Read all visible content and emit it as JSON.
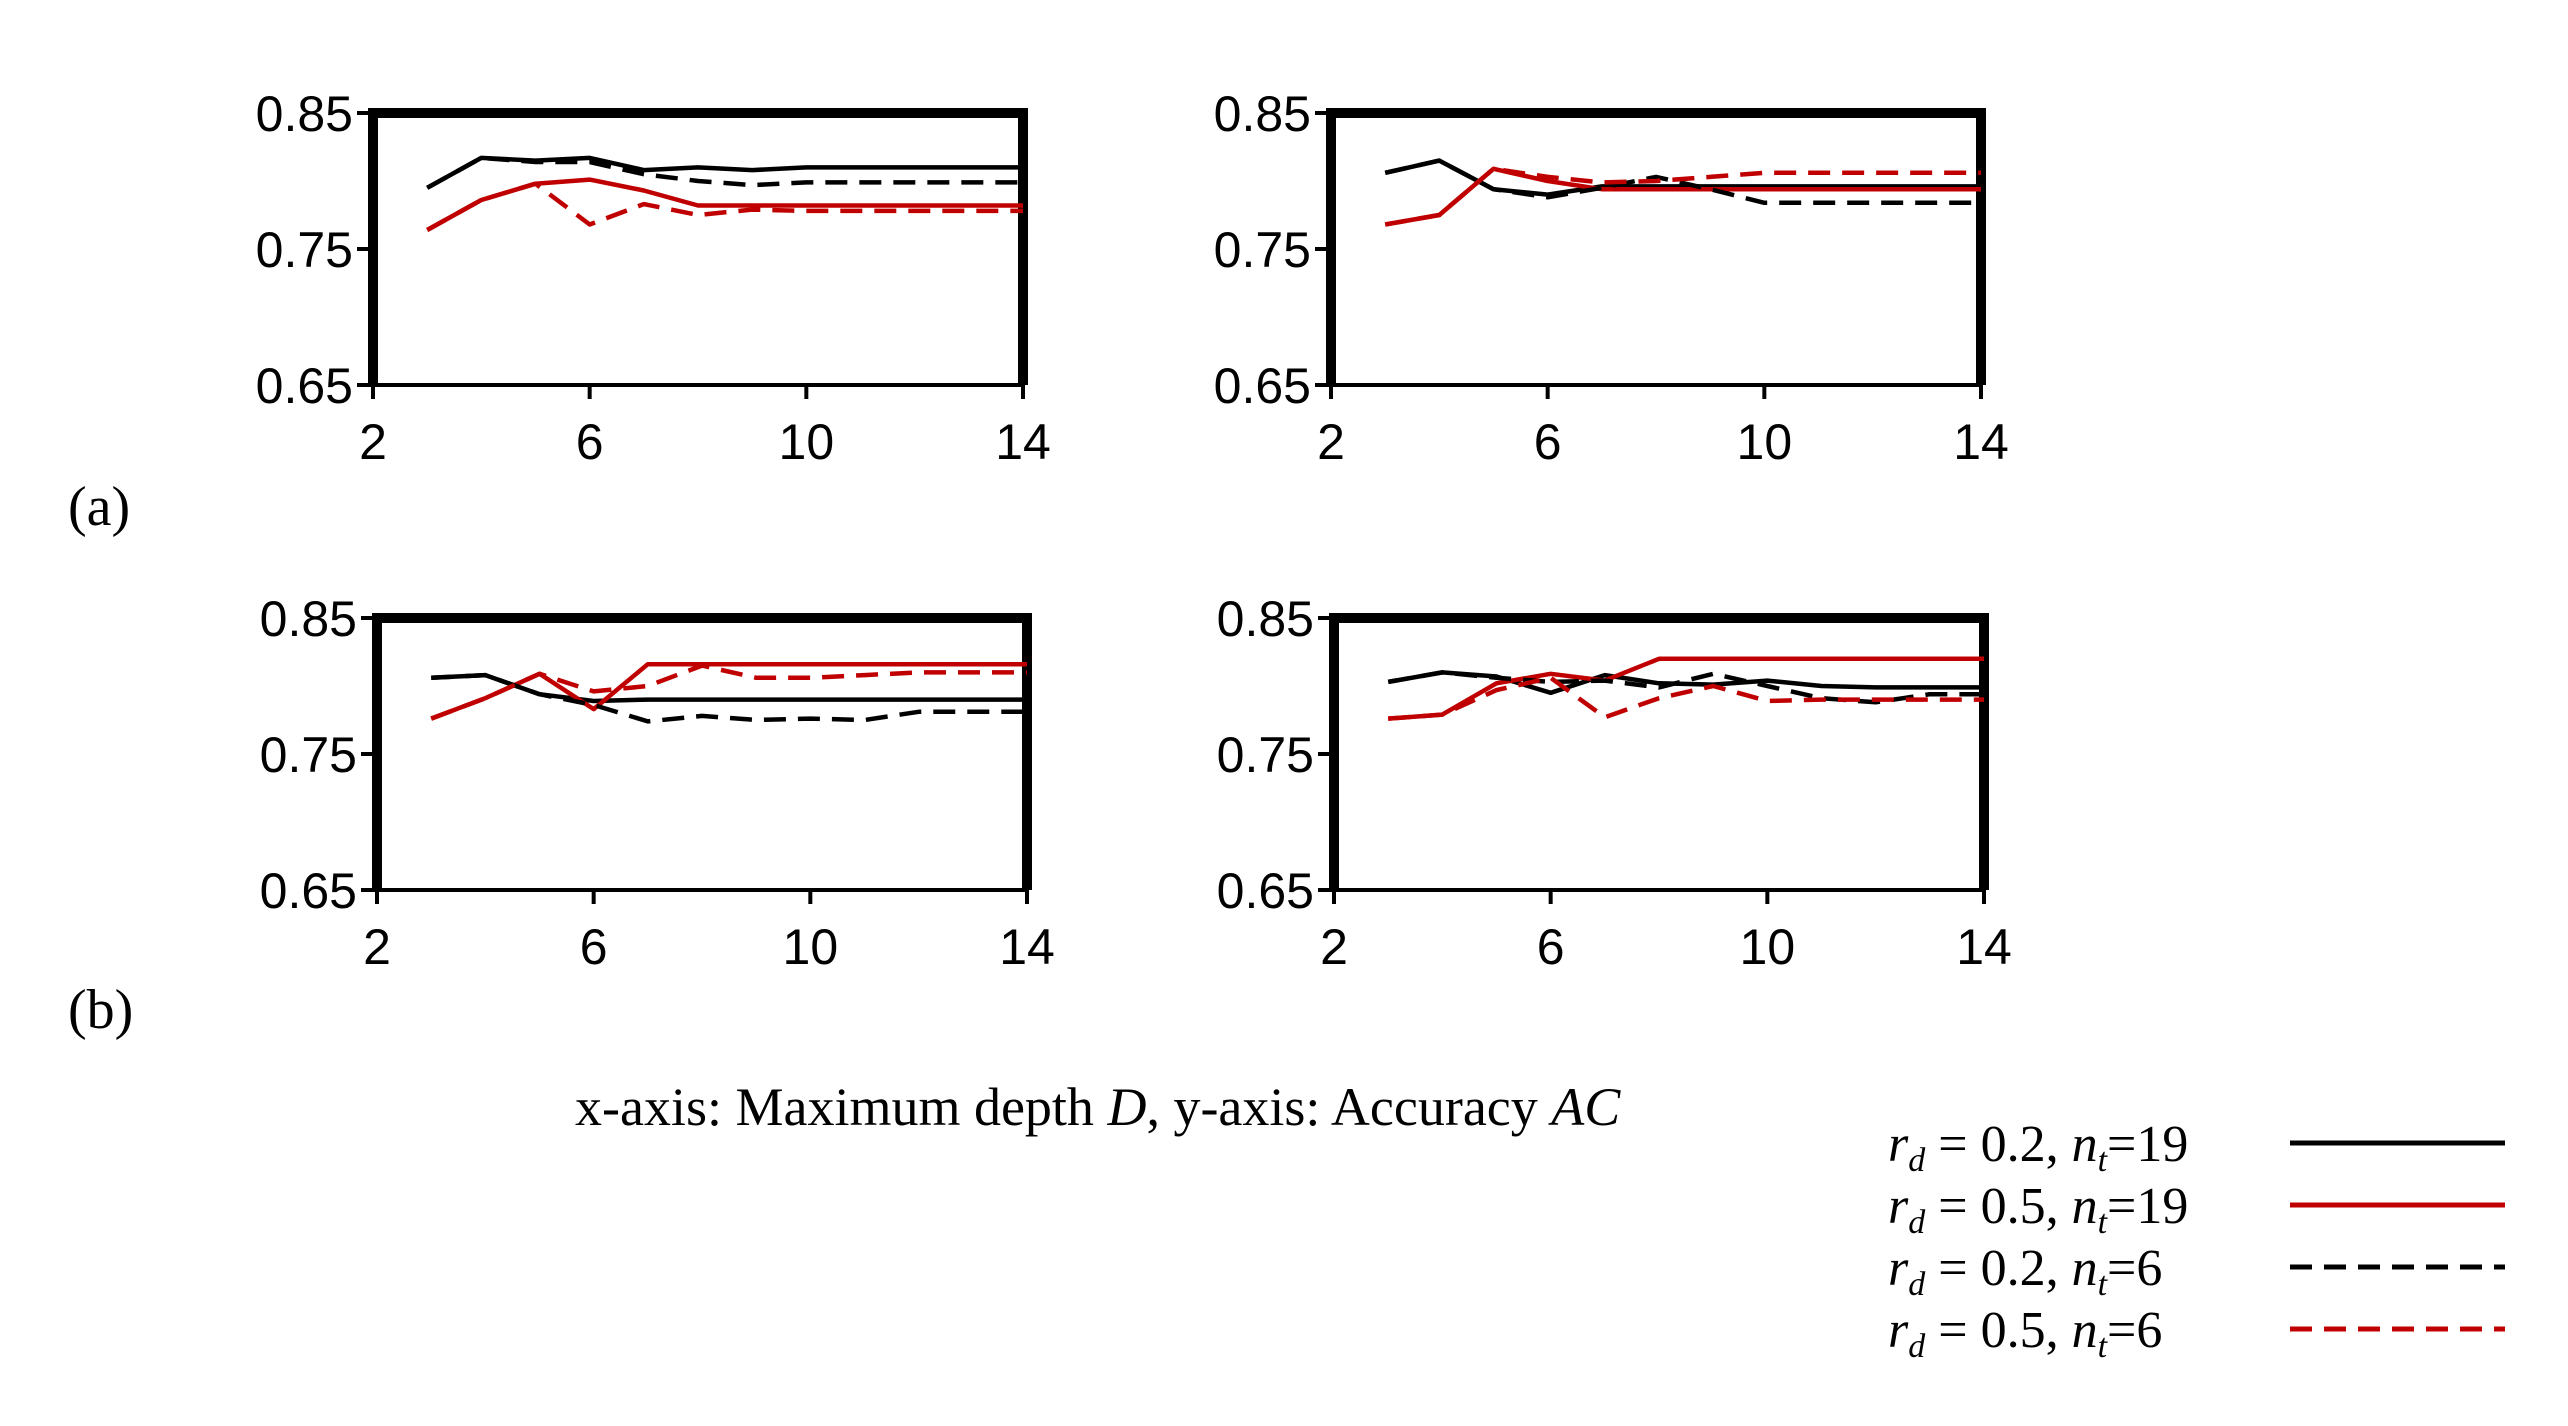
{
  "colors": {
    "black": "#000000",
    "red": "#c00000",
    "frame": "#000000"
  },
  "row_labels": [
    "(a)",
    "(b)"
  ],
  "caption": {
    "prefix": "x-axis: Maximum depth ",
    "x_var": "D",
    "middle": ", y-axis: Accuracy ",
    "y_var": "AC"
  },
  "legend": [
    {
      "r": "r",
      "r_sub": "d",
      "eq_text": " = 0.2, ",
      "n": "n",
      "n_sub": "t",
      "n_val": "=19",
      "color": "#000000",
      "dash": false
    },
    {
      "r": "r",
      "r_sub": "d",
      "eq_text": " = 0.5, ",
      "n": "n",
      "n_sub": "t",
      "n_val": "=19",
      "color": "#c00000",
      "dash": false
    },
    {
      "r": "r",
      "r_sub": "d",
      "eq_text": " = 0.2, ",
      "n": "n",
      "n_sub": "t",
      "n_val": "=6",
      "color": "#000000",
      "dash": true
    },
    {
      "r": "r",
      "r_sub": "d",
      "eq_text": " = 0.5, ",
      "n": "n",
      "n_sub": "t",
      "n_val": "=6",
      "color": "#c00000",
      "dash": true
    }
  ],
  "chart_data": [
    {
      "type": "line",
      "row": "(a)",
      "position": "left",
      "x": [
        3,
        4,
        5,
        6,
        7,
        8,
        9,
        10,
        11,
        12,
        13,
        14
      ],
      "xlim": [
        2,
        14
      ],
      "ylim": [
        0.65,
        0.85
      ],
      "xticks": [
        "2",
        "6",
        "10",
        "14"
      ],
      "yticks": [
        "0.65",
        "0.75",
        "0.85"
      ],
      "series": [
        {
          "name": "r_d = 0.2, n_t=19",
          "color": "#000000",
          "dash": false,
          "values": [
            0.795,
            0.817,
            0.815,
            0.817,
            0.808,
            0.81,
            0.808,
            0.81,
            0.81,
            0.81,
            0.81,
            0.81
          ]
        },
        {
          "name": "r_d = 0.5, n_t=19",
          "color": "#c00000",
          "dash": false,
          "values": [
            0.764,
            0.786,
            0.798,
            0.801,
            0.793,
            0.782,
            0.782,
            0.782,
            0.782,
            0.782,
            0.782,
            0.782
          ]
        },
        {
          "name": "r_d = 0.2, n_t=6",
          "color": "#000000",
          "dash": true,
          "values": [
            0.795,
            0.817,
            0.814,
            0.814,
            0.805,
            0.8,
            0.797,
            0.799,
            0.799,
            0.799,
            0.799,
            0.799
          ]
        },
        {
          "name": "r_d = 0.5, n_t=6",
          "color": "#c00000",
          "dash": true,
          "values": [
            0.764,
            0.786,
            0.798,
            0.768,
            0.783,
            0.775,
            0.779,
            0.778,
            0.778,
            0.778,
            0.778,
            0.778
          ]
        }
      ]
    },
    {
      "type": "line",
      "row": "(a)",
      "position": "right",
      "x": [
        3,
        4,
        5,
        6,
        7,
        8,
        9,
        10,
        11,
        12,
        13,
        14
      ],
      "xlim": [
        2,
        14
      ],
      "ylim": [
        0.65,
        0.85
      ],
      "xticks": [
        "2",
        "6",
        "10",
        "14"
      ],
      "yticks": [
        "0.65",
        "0.75",
        "0.85"
      ],
      "series": [
        {
          "name": "r_d = 0.2, n_t=19",
          "color": "#000000",
          "dash": false,
          "values": [
            0.806,
            0.815,
            0.794,
            0.79,
            0.796,
            0.796,
            0.796,
            0.796,
            0.796,
            0.796,
            0.796,
            0.796
          ]
        },
        {
          "name": "r_d = 0.5, n_t=19",
          "color": "#c00000",
          "dash": false,
          "values": [
            0.768,
            0.775,
            0.809,
            0.8,
            0.794,
            0.794,
            0.794,
            0.794,
            0.794,
            0.794,
            0.794,
            0.794
          ]
        },
        {
          "name": "r_d = 0.2, n_t=6",
          "color": "#000000",
          "dash": true,
          "values": [
            0.806,
            0.815,
            0.794,
            0.788,
            0.795,
            0.803,
            0.794,
            0.784,
            0.784,
            0.784,
            0.784,
            0.784
          ]
        },
        {
          "name": "r_d = 0.5, n_t=6",
          "color": "#c00000",
          "dash": true,
          "values": [
            0.768,
            0.775,
            0.809,
            0.803,
            0.799,
            0.8,
            0.803,
            0.806,
            0.806,
            0.806,
            0.806,
            0.806
          ]
        }
      ]
    },
    {
      "type": "line",
      "row": "(b)",
      "position": "left",
      "x": [
        3,
        4,
        5,
        6,
        7,
        8,
        9,
        10,
        11,
        12,
        13,
        14
      ],
      "xlim": [
        2,
        14
      ],
      "ylim": [
        0.65,
        0.85
      ],
      "xticks": [
        "2",
        "6",
        "10",
        "14"
      ],
      "yticks": [
        "0.65",
        "0.75",
        "0.85"
      ],
      "series": [
        {
          "name": "r_d = 0.2, n_t=19",
          "color": "#000000",
          "dash": false,
          "values": [
            0.806,
            0.808,
            0.794,
            0.789,
            0.79,
            0.79,
            0.79,
            0.79,
            0.79,
            0.79,
            0.79,
            0.79
          ]
        },
        {
          "name": "r_d = 0.5, n_t=19",
          "color": "#c00000",
          "dash": false,
          "values": [
            0.776,
            0.791,
            0.809,
            0.783,
            0.816,
            0.816,
            0.816,
            0.816,
            0.816,
            0.816,
            0.816,
            0.816
          ]
        },
        {
          "name": "r_d = 0.2, n_t=6",
          "color": "#000000",
          "dash": true,
          "values": [
            0.806,
            0.808,
            0.794,
            0.786,
            0.774,
            0.778,
            0.775,
            0.776,
            0.775,
            0.781,
            0.781,
            0.781
          ]
        },
        {
          "name": "r_d = 0.5, n_t=6",
          "color": "#c00000",
          "dash": true,
          "values": [
            0.776,
            0.791,
            0.809,
            0.796,
            0.8,
            0.815,
            0.806,
            0.806,
            0.808,
            0.81,
            0.81,
            0.81
          ]
        }
      ]
    },
    {
      "type": "line",
      "row": "(b)",
      "position": "right",
      "x": [
        3,
        4,
        5,
        6,
        7,
        8,
        9,
        10,
        11,
        12,
        13,
        14
      ],
      "xlim": [
        2,
        14
      ],
      "ylim": [
        0.65,
        0.85
      ],
      "xticks": [
        "2",
        "6",
        "10",
        "14"
      ],
      "yticks": [
        "0.65",
        "0.75",
        "0.85"
      ],
      "series": [
        {
          "name": "r_d = 0.2, n_t=19",
          "color": "#000000",
          "dash": false,
          "values": [
            0.803,
            0.81,
            0.807,
            0.795,
            0.808,
            0.802,
            0.801,
            0.804,
            0.8,
            0.799,
            0.799,
            0.799
          ]
        },
        {
          "name": "r_d = 0.5, n_t=19",
          "color": "#c00000",
          "dash": false,
          "values": [
            0.776,
            0.779,
            0.802,
            0.809,
            0.804,
            0.82,
            0.82,
            0.82,
            0.82,
            0.82,
            0.82,
            0.82
          ]
        },
        {
          "name": "r_d = 0.2, n_t=6",
          "color": "#000000",
          "dash": true,
          "values": [
            0.803,
            0.81,
            0.806,
            0.803,
            0.804,
            0.799,
            0.809,
            0.8,
            0.791,
            0.788,
            0.794,
            0.794
          ]
        },
        {
          "name": "r_d = 0.5, n_t=6",
          "color": "#c00000",
          "dash": true,
          "values": [
            0.776,
            0.779,
            0.797,
            0.806,
            0.777,
            0.791,
            0.8,
            0.789,
            0.79,
            0.79,
            0.79,
            0.79
          ]
        }
      ]
    }
  ]
}
